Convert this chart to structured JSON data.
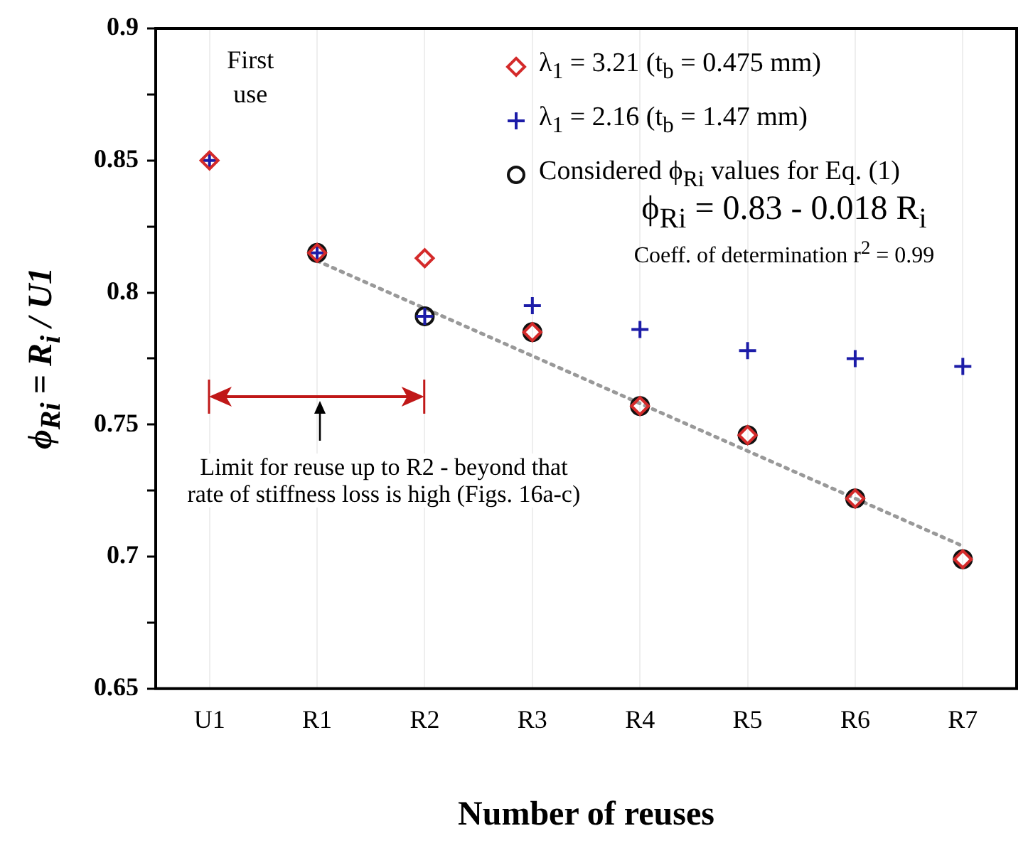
{
  "chart_data": {
    "type": "scatter",
    "xlabel": "Number of reuses",
    "ylabel": "ϕ$_{Ri}$ = R$_{i}$ / U1",
    "categories": [
      "U1",
      "R1",
      "R2",
      "R3",
      "R4",
      "R5",
      "R6",
      "R7"
    ],
    "ylim": [
      0.65,
      0.9
    ],
    "yticks": [
      0.65,
      {
        "value": 0.675,
        "label": null
      },
      0.7,
      {
        "value": 0.725,
        "label": null
      },
      0.75,
      {
        "value": 0.775,
        "label": null
      },
      0.8,
      {
        "value": 0.825,
        "label": null
      },
      0.85,
      {
        "value": 0.875,
        "label": null
      },
      0.9
    ],
    "grid": "x",
    "legend": "top right",
    "series": [
      {
        "name": "λ$_{1}$ = 3.21 (t$_{b}$ = 0.475 mm)",
        "color": "#d42a2a",
        "marker": "diamond",
        "values": [
          0.85,
          0.815,
          0.813,
          0.785,
          0.757,
          0.746,
          0.722,
          0.699
        ]
      },
      {
        "name": "λ$_{1}$ = 2.16 (t$_{b}$ = 1.47 mm)",
        "color": "#1c1ca8",
        "marker": "cross",
        "values": [
          0.85,
          0.815,
          0.791,
          0.795,
          0.786,
          0.778,
          0.775,
          0.772
        ]
      },
      {
        "name": "Considered ϕ$_{Ri}$ values for Eq. (1)",
        "color": "#111111",
        "marker": "circle",
        "values": [
          null,
          0.815,
          0.791,
          0.785,
          0.757,
          0.746,
          0.722,
          0.699
        ]
      },
      {
        "type": "line",
        "color": "#999999",
        "line_style": "dotted",
        "marker": "none",
        "values": [
          null,
          0.812,
          0.794,
          0.776,
          0.758,
          0.74,
          0.722,
          0.704
        ]
      }
    ],
    "annotations": [
      "First use",
      "ϕ$_{Ri}$ = 0.83 - 0.018 R$_{i}$",
      "Coeff. of determination r$^{2}$ = 0.99",
      "Limit for reuse up to R2 - beyond that rate of stiffness loss is high (Figs. 16a-c)"
    ]
  }
}
